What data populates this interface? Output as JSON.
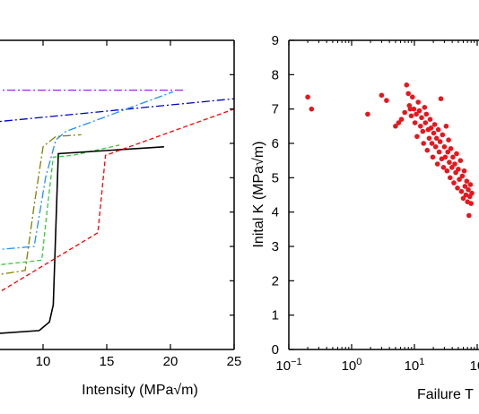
{
  "chart_data": [
    {
      "type": "line",
      "xlabel": "Intensity (MPa√m)",
      "ylabel": "",
      "xlim": [
        0,
        25
      ],
      "ylim": [
        0,
        9
      ],
      "grid": false,
      "x_ticks": [
        10,
        15,
        20,
        25
      ],
      "x_tick_labels": [
        "10",
        "15",
        "20",
        "25"
      ],
      "series": [
        {
          "color": "#a020f0",
          "style": "dash-dot",
          "points": [
            [
              0,
              7.55
            ],
            [
              21,
              7.55
            ]
          ]
        },
        {
          "color": "#0000cd",
          "style": "dash-dot",
          "points": [
            [
              0,
              6.1
            ],
            [
              2.8,
              6.5
            ],
            [
              25,
              7.3
            ]
          ]
        },
        {
          "color": "#1e90ff",
          "style": "dash-dot",
          "points": [
            [
              0,
              2.7
            ],
            [
              9.3,
              3.0
            ],
            [
              10.2,
              5.0
            ],
            [
              11.0,
              6.1
            ],
            [
              11.8,
              6.35
            ],
            [
              20.2,
              7.5
            ]
          ]
        },
        {
          "color": "#808000",
          "style": "dash-dot",
          "points": [
            [
              0,
              1.8
            ],
            [
              8.6,
              2.3
            ],
            [
              9.3,
              4.2
            ],
            [
              10.0,
              5.9
            ],
            [
              11.0,
              6.2
            ],
            [
              13.0,
              6.25
            ]
          ]
        },
        {
          "color": "#32cd32",
          "style": "dashed",
          "points": [
            [
              0,
              2.2
            ],
            [
              9.9,
              2.6
            ],
            [
              10.3,
              4.0
            ],
            [
              10.8,
              5.6
            ],
            [
              12.3,
              5.65
            ],
            [
              16.0,
              5.95
            ]
          ]
        },
        {
          "color": "#000000",
          "style": "solid",
          "points": [
            [
              0,
              0.3
            ],
            [
              9.7,
              0.55
            ],
            [
              10.5,
              0.8
            ],
            [
              10.8,
              1.3
            ],
            [
              11.2,
              5.7
            ],
            [
              19.5,
              5.9
            ]
          ]
        },
        {
          "color": "#ff0000",
          "style": "dashed",
          "points": [
            [
              0,
              0.2
            ],
            [
              14.3,
              3.4
            ],
            [
              14.9,
              5.65
            ],
            [
              25,
              7.0
            ]
          ]
        }
      ]
    },
    {
      "type": "scatter",
      "xlabel": "Failure T",
      "ylabel": "Inital K (MPa√m)",
      "xscale": "log",
      "xlim": [
        0.1,
        100
      ],
      "ylim": [
        0,
        9
      ],
      "grid": false,
      "x_ticks": [
        0.1,
        1,
        10,
        100
      ],
      "x_tick_labels": [
        "10−1",
        "100",
        "101",
        "10"
      ],
      "y_ticks": [
        0,
        1,
        2,
        3,
        4,
        5,
        6,
        7,
        8,
        9
      ],
      "y_tick_labels": [
        "0",
        "1",
        "2",
        "3",
        "4",
        "5",
        "6",
        "7",
        "8",
        "9"
      ],
      "color": "#e8161c",
      "points": [
        [
          0.2,
          7.35
        ],
        [
          0.23,
          7.0
        ],
        [
          1.8,
          6.85
        ],
        [
          3.0,
          7.4
        ],
        [
          3.6,
          7.25
        ],
        [
          5.0,
          6.5
        ],
        [
          5.6,
          6.6
        ],
        [
          6.2,
          6.7
        ],
        [
          7.0,
          6.9
        ],
        [
          7.5,
          7.7
        ],
        [
          8.0,
          7.45
        ],
        [
          8.3,
          7.1
        ],
        [
          8.6,
          7.0
        ],
        [
          8.9,
          6.8
        ],
        [
          9.3,
          7.35
        ],
        [
          9.8,
          7.0
        ],
        [
          10.2,
          6.6
        ],
        [
          10.7,
          6.85
        ],
        [
          11.0,
          6.2
        ],
        [
          11.5,
          7.2
        ],
        [
          12.0,
          6.95
        ],
        [
          12.5,
          6.5
        ],
        [
          13.0,
          6.75
        ],
        [
          13.6,
          6.35
        ],
        [
          14.0,
          6.0
        ],
        [
          14.5,
          7.05
        ],
        [
          15.0,
          6.6
        ],
        [
          15.5,
          6.85
        ],
        [
          16.0,
          5.8
        ],
        [
          16.6,
          6.4
        ],
        [
          17.2,
          6.15
        ],
        [
          17.8,
          6.7
        ],
        [
          18.4,
          6.45
        ],
        [
          19.0,
          6.0
        ],
        [
          19.6,
          5.6
        ],
        [
          20.3,
          6.3
        ],
        [
          21.0,
          6.55
        ],
        [
          21.8,
          5.9
        ],
        [
          22.5,
          6.15
        ],
        [
          23.3,
          5.4
        ],
        [
          24.0,
          6.4
        ],
        [
          24.8,
          5.75
        ],
        [
          25.6,
          6.05
        ],
        [
          26.4,
          7.3
        ],
        [
          27.2,
          5.55
        ],
        [
          28.0,
          6.25
        ],
        [
          29.0,
          5.3
        ],
        [
          30.0,
          5.9
        ],
        [
          31.0,
          5.6
        ],
        [
          32.0,
          6.5
        ],
        [
          33.0,
          5.2
        ],
        [
          34.0,
          5.75
        ],
        [
          35.0,
          6.1
        ],
        [
          36.0,
          5.45
        ],
        [
          37.0,
          5.0
        ],
        [
          38.0,
          5.85
        ],
        [
          39.5,
          5.3
        ],
        [
          41.0,
          5.6
        ],
        [
          42.5,
          4.85
        ],
        [
          44.0,
          5.4
        ],
        [
          45.5,
          5.15
        ],
        [
          47.0,
          5.7
        ],
        [
          48.5,
          4.7
        ],
        [
          50.0,
          5.25
        ],
        [
          52.0,
          4.95
        ],
        [
          54.0,
          5.5
        ],
        [
          56.0,
          4.6
        ],
        [
          58.0,
          5.05
        ],
        [
          60.0,
          4.4
        ],
        [
          62.0,
          5.2
        ],
        [
          64.0,
          4.75
        ],
        [
          66.0,
          4.5
        ],
        [
          68.0,
          4.9
        ],
        [
          70.0,
          4.3
        ],
        [
          72.0,
          4.65
        ],
        [
          74.0,
          3.9
        ],
        [
          76.0,
          4.45
        ],
        [
          78.0,
          4.8
        ],
        [
          80.0,
          4.25
        ],
        [
          82.0,
          4.55
        ]
      ]
    }
  ]
}
